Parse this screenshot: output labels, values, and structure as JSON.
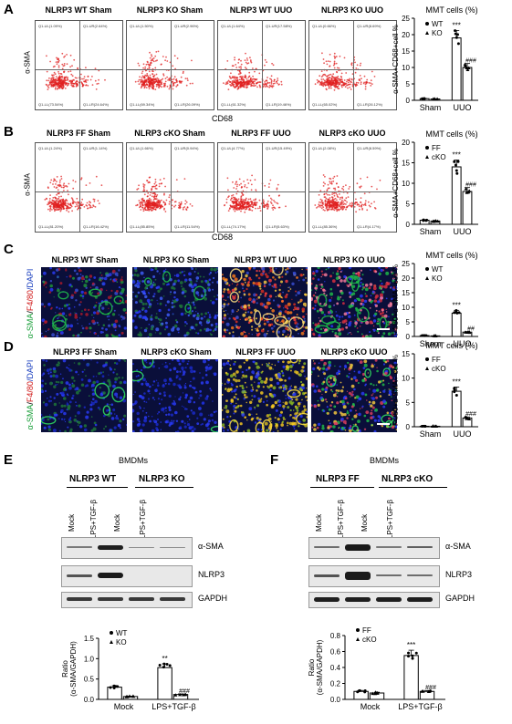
{
  "panels": {
    "A": {
      "letter": "A",
      "titles": [
        "NLRP3 WT Sham",
        "NLRP3 KO Sham",
        "NLRP3 WT UUO",
        "NLRP3 KO UUO"
      ],
      "ylabel": "α-SMA",
      "xlabel": "CD68",
      "quadrants": [
        [
          "Q1-UL(1.09%)",
          "Q1-UR(2.64%)",
          "Q1-LL(73.54%)",
          "Q1-LR(24.64%)"
        ],
        [
          "Q1-UL(1.50%)",
          "Q1-UR(2.96%)",
          "Q1-LL(69.34%)",
          "Q1-LR(26.09%)"
        ],
        [
          "Q1-UL(1.64%)",
          "Q1-UR(17.58%)",
          "Q1-LL(61.32%)",
          "Q1-LR(19.46%)"
        ],
        [
          "Q1-UL(0.66%)",
          "Q1-UR(8.69%)",
          "Q1-LL(65.02%)",
          "Q1-LR(26.12%)"
        ]
      ],
      "chart": {
        "title": "MMT cells (%)",
        "ylabel": "α-SMA+CD68+cell %",
        "legend": [
          "WT",
          "KO"
        ],
        "sig1": "***",
        "sig2": "###"
      }
    },
    "B": {
      "letter": "B",
      "titles": [
        "NLRP3 FF Sham",
        "NLRP3 cKO Sham",
        "NLRP3 FF UUO",
        "NLRP3 cKO UUO"
      ],
      "ylabel": "α-SMA",
      "xlabel": "CD68",
      "quadrants": [
        [
          "Q1-UL(1.24%)",
          "Q1-UR(1.14%)",
          "Q1-LL(81.20%)",
          "Q1-LR(16.42%)"
        ],
        [
          "Q1-UL(1.66%)",
          "Q1-UR(0.94%)",
          "Q1-LL(85.85%)",
          "Q1-LR(11.54%)"
        ],
        [
          "Q1-UL(4.77%)",
          "Q1-UR(15.49%)",
          "Q1-LL(74.17%)",
          "Q1-LR(5.63%)"
        ],
        [
          "Q1-UL(2.08%)",
          "Q1-UR(8.59%)",
          "Q1-LL(85.36%)",
          "Q1-LR(4.17%)"
        ]
      ],
      "chart": {
        "title": "MMT cells (%)",
        "ylabel": "α-SMA+CD68+cell %",
        "legend": [
          "FF",
          "cKO"
        ],
        "sig1": "***",
        "sig2": "###"
      }
    },
    "C": {
      "letter": "C",
      "titles": [
        "NLRP3 WT Sham",
        "NLRP3 KO Sham",
        "NLRP3 WT UUO",
        "NLRP3 KO UUO"
      ],
      "stain": [
        "α-SMA",
        "/",
        "F4/80",
        "/DAPI"
      ],
      "chart": {
        "title": "MMT cells (%)",
        "ylabel": "F4/80+α-SMA+ cell %",
        "legend": [
          "WT",
          "KO"
        ],
        "sig1": "***",
        "sig2": "##"
      }
    },
    "D": {
      "letter": "D",
      "titles": [
        "NLRP3 FF Sham",
        "NLRP3 cKO Sham",
        "NLRP3 FF UUO",
        "NLRP3 cKO UUO"
      ],
      "stain": [
        "α-SMA",
        "/",
        "F4/80",
        "/DAPI"
      ],
      "chart": {
        "title": "MMT cells (%)",
        "ylabel": "F4/80+α-SMA+ cell %",
        "legend": [
          "FF",
          "cKO"
        ],
        "sig1": "***",
        "sig2": "###"
      }
    },
    "E": {
      "letter": "E",
      "header": "BMDMs",
      "groups": [
        "NLRP3 WT",
        "NLRP3 KO"
      ],
      "lanes": [
        "Mock",
        "LPS+TGF-β",
        "Mock",
        "LPS+TGF-β"
      ],
      "blots": [
        "α-SMA",
        "NLRP3",
        "GAPDH"
      ],
      "chart": {
        "ylabel": "Ratio",
        "ylabel2": "(α-SMA/GAPDH)",
        "legend": [
          "WT",
          "KO"
        ],
        "sig1": "**",
        "sig2": "###",
        "xcats": [
          "Mock",
          "LPS+TGF-β"
        ]
      }
    },
    "F": {
      "letter": "F",
      "header": "BMDMs",
      "groups": [
        "NLRP3 FF",
        "NLRP3 cKO"
      ],
      "lanes": [
        "Mock",
        "LPS+TGF-β",
        "Mock",
        "LPS+TGF-β"
      ],
      "blots": [
        "α-SMA",
        "NLRP3",
        "GAPDH"
      ],
      "chart": {
        "ylabel": "Ratio",
        "ylabel2": "(α-SMA/GAPDH)",
        "legend": [
          "FF",
          "cKO"
        ],
        "sig1": "***",
        "sig2": "###",
        "xcats": [
          "Mock",
          "LPS+TGF-β"
        ]
      }
    }
  },
  "chart_data": [
    {
      "type": "bar",
      "panel": "A",
      "categories": [
        "Sham",
        "UUO"
      ],
      "series": [
        {
          "name": "WT",
          "values": [
            0.5,
            19
          ]
        },
        {
          "name": "KO",
          "values": [
            0.4,
            10
          ]
        }
      ],
      "ylim": [
        0,
        25
      ],
      "yticks": [
        0,
        5,
        10,
        15,
        20,
        25
      ]
    },
    {
      "type": "bar",
      "panel": "B",
      "categories": [
        "Sham",
        "UUO"
      ],
      "series": [
        {
          "name": "FF",
          "values": [
            1,
            14
          ]
        },
        {
          "name": "cKO",
          "values": [
            0.8,
            8
          ]
        }
      ],
      "ylim": [
        0,
        20
      ],
      "yticks": [
        0,
        5,
        10,
        15,
        20
      ]
    },
    {
      "type": "bar",
      "panel": "C",
      "categories": [
        "Sham",
        "UUO"
      ],
      "series": [
        {
          "name": "WT",
          "values": [
            0.3,
            8
          ]
        },
        {
          "name": "KO",
          "values": [
            0.2,
            1.5
          ]
        }
      ],
      "ylim": [
        0,
        25
      ],
      "yticks": [
        0,
        5,
        10,
        15,
        20,
        25
      ]
    },
    {
      "type": "bar",
      "panel": "D",
      "categories": [
        "Sham",
        "UUO"
      ],
      "series": [
        {
          "name": "FF",
          "values": [
            0.1,
            7.3
          ]
        },
        {
          "name": "cKO",
          "values": [
            0.1,
            1.8
          ]
        }
      ],
      "ylim": [
        0,
        15
      ],
      "yticks": [
        0,
        5,
        10,
        15
      ]
    },
    {
      "type": "bar",
      "panel": "E",
      "categories": [
        "Mock",
        "LPS+TGF-β"
      ],
      "series": [
        {
          "name": "WT",
          "values": [
            0.3,
            0.78
          ]
        },
        {
          "name": "KO",
          "values": [
            0.07,
            0.12
          ]
        }
      ],
      "ylim": [
        0,
        1.5
      ],
      "yticks": [
        0.0,
        0.5,
        1.0,
        1.5
      ]
    },
    {
      "type": "bar",
      "panel": "F",
      "categories": [
        "Mock",
        "LPS+TGF-β"
      ],
      "series": [
        {
          "name": "FF",
          "values": [
            0.1,
            0.55
          ]
        },
        {
          "name": "cKO",
          "values": [
            0.08,
            0.1
          ]
        }
      ],
      "ylim": [
        0,
        0.8
      ],
      "yticks": [
        0.0,
        0.2,
        0.4,
        0.6,
        0.8
      ]
    }
  ]
}
